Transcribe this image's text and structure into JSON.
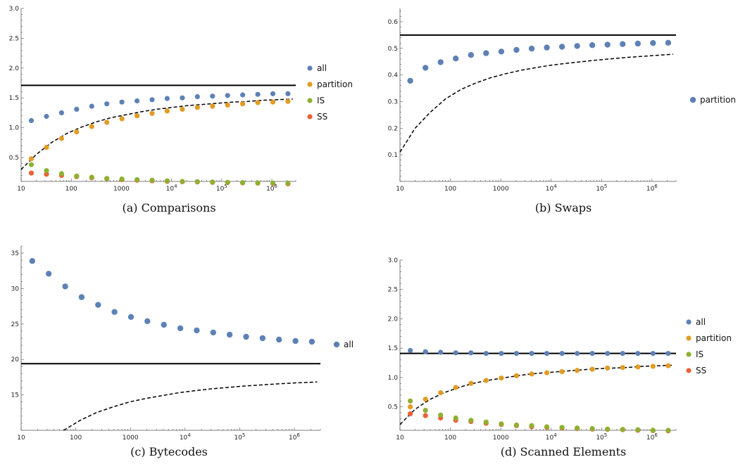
{
  "chart_data": [
    {
      "id": "a",
      "type": "scatter",
      "caption": "(a) Comparisons",
      "x_scale": "log",
      "xlim": [
        10,
        3000000
      ],
      "ylim": [
        0.1,
        3.0
      ],
      "y_ticks": [
        0.5,
        1.0,
        1.5,
        2.0,
        2.5,
        3.0
      ],
      "y_tick_labels": [
        "0.5",
        "1.0",
        "1.5",
        "2.0",
        "2.5",
        "3.0"
      ],
      "x_ticks": [
        10,
        100,
        1000,
        10000,
        100000,
        1000000
      ],
      "x_tick_labels": [
        "10",
        "100",
        "1000",
        "10^4",
        "10^5",
        "10^6"
      ],
      "x": [
        16,
        32,
        64,
        128,
        256,
        512,
        1024,
        2048,
        4096,
        8192,
        16384,
        32768,
        65536,
        131072,
        262144,
        524288,
        1048576,
        2097152
      ],
      "series": [
        {
          "name": "all",
          "color": "#5e81b5",
          "values": [
            1.12,
            1.19,
            1.25,
            1.31,
            1.36,
            1.4,
            1.43,
            1.45,
            1.47,
            1.49,
            1.5,
            1.52,
            1.53,
            1.54,
            1.55,
            1.56,
            1.57,
            1.57
          ]
        },
        {
          "name": "partition",
          "color": "#e19c24",
          "values": [
            0.48,
            0.67,
            0.82,
            0.93,
            1.02,
            1.09,
            1.15,
            1.2,
            1.24,
            1.28,
            1.31,
            1.34,
            1.36,
            1.38,
            1.4,
            1.42,
            1.43,
            1.44
          ]
        },
        {
          "name": "IS",
          "color": "#8fb032",
          "values": [
            0.38,
            0.28,
            0.23,
            0.19,
            0.17,
            0.15,
            0.14,
            0.13,
            0.12,
            0.11,
            0.1,
            0.095,
            0.09,
            0.085,
            0.08,
            0.075,
            0.07,
            0.07
          ]
        },
        {
          "name": "SS",
          "color": "#eb6235",
          "values": [
            0.24,
            0.22,
            0.2,
            0.18,
            0.16,
            0.145,
            0.13,
            0.12,
            0.11,
            0.1,
            0.095,
            0.09,
            0.085,
            0.08,
            0.075,
            0.07,
            0.065,
            0.06
          ]
        }
      ],
      "hline": 1.71,
      "dashed_curve": {
        "x": [
          10,
          20,
          40,
          80,
          160,
          320,
          640,
          1280,
          2560,
          5120,
          10240,
          20480,
          40960,
          81920,
          163840,
          327680,
          655360,
          1310720,
          2621440
        ],
        "y": [
          0.3,
          0.55,
          0.75,
          0.9,
          1.01,
          1.1,
          1.17,
          1.22,
          1.27,
          1.31,
          1.34,
          1.37,
          1.39,
          1.41,
          1.43,
          1.44,
          1.46,
          1.47,
          1.48
        ]
      },
      "legend": [
        "all",
        "partition",
        "IS",
        "SS"
      ],
      "legend_placement": "right"
    },
    {
      "id": "b",
      "type": "scatter",
      "caption": "(b) Swaps",
      "x_scale": "log",
      "xlim": [
        10,
        3000000
      ],
      "ylim": [
        0.0,
        0.65
      ],
      "y_ticks": [
        0.1,
        0.2,
        0.3,
        0.4,
        0.5,
        0.6
      ],
      "y_tick_labels": [
        "0.1",
        "0.2",
        "0.3",
        "0.4",
        "0.5",
        "0.6"
      ],
      "x_ticks": [
        10,
        100,
        1000,
        10000,
        100000,
        1000000
      ],
      "x_tick_labels": [
        "10",
        "100",
        "1000",
        "10^4",
        "10^5",
        "10^6"
      ],
      "x": [
        16,
        32,
        64,
        128,
        256,
        512,
        1024,
        2048,
        4096,
        8192,
        16384,
        32768,
        65536,
        131072,
        262144,
        524288,
        1048576,
        2097152
      ],
      "series": [
        {
          "name": "partition",
          "color": "#5e81b5",
          "values": [
            0.378,
            0.427,
            0.448,
            0.462,
            0.475,
            0.482,
            0.488,
            0.494,
            0.499,
            0.503,
            0.506,
            0.509,
            0.512,
            0.514,
            0.516,
            0.518,
            0.52,
            0.521
          ]
        }
      ],
      "hline": 0.55,
      "dashed_curve": {
        "x": [
          10,
          20,
          40,
          80,
          160,
          320,
          640,
          1280,
          2560,
          5120,
          10240,
          20480,
          40960,
          81920,
          163840,
          327680,
          655360,
          1310720,
          2621440
        ],
        "y": [
          0.11,
          0.2,
          0.26,
          0.31,
          0.345,
          0.37,
          0.39,
          0.405,
          0.418,
          0.428,
          0.437,
          0.444,
          0.45,
          0.456,
          0.461,
          0.466,
          0.47,
          0.474,
          0.478
        ]
      },
      "legend": [
        "partition"
      ],
      "legend_placement": "right"
    },
    {
      "id": "c",
      "type": "scatter",
      "caption": "(c) Bytecodes",
      "x_scale": "log",
      "xlim": [
        10,
        3000000
      ],
      "ylim": [
        10,
        36
      ],
      "y_ticks": [
        15,
        20,
        25,
        30,
        35
      ],
      "y_tick_labels": [
        "15",
        "20",
        "25",
        "30",
        "35"
      ],
      "x_ticks": [
        10,
        100,
        1000,
        10000,
        100000,
        1000000
      ],
      "x_tick_labels": [
        "10",
        "100",
        "1000",
        "10^4",
        "10^5",
        "10^6"
      ],
      "x": [
        16,
        32,
        64,
        128,
        256,
        512,
        1024,
        2048,
        4096,
        8192,
        16384,
        32768,
        65536,
        131072,
        262144,
        524288,
        1048576,
        2097152
      ],
      "series": [
        {
          "name": "all",
          "color": "#5e81b5",
          "values": [
            33.9,
            32.1,
            30.3,
            28.8,
            27.7,
            26.7,
            26.0,
            25.4,
            24.9,
            24.4,
            24.1,
            23.8,
            23.5,
            23.2,
            23.0,
            22.8,
            22.6,
            22.5
          ]
        }
      ],
      "hline": 19.4,
      "dashed_curve": {
        "x": [
          60,
          120,
          240,
          480,
          960,
          1920,
          3840,
          7680,
          15360,
          30720,
          61440,
          122880,
          245760,
          491520,
          983040,
          1966080,
          2621440
        ],
        "y": [
          10.0,
          11.4,
          12.5,
          13.3,
          14.0,
          14.5,
          14.9,
          15.3,
          15.6,
          15.85,
          16.05,
          16.25,
          16.4,
          16.55,
          16.68,
          16.78,
          16.82
        ]
      },
      "legend": [
        "all"
      ],
      "legend_placement": "right"
    },
    {
      "id": "d",
      "type": "scatter",
      "caption": "(d) Scanned Elements",
      "x_scale": "log",
      "xlim": [
        10,
        3000000
      ],
      "ylim": [
        0.1,
        3.0
      ],
      "y_ticks": [
        0.5,
        1.0,
        1.5,
        2.0,
        2.5,
        3.0
      ],
      "y_tick_labels": [
        "0.5",
        "1.0",
        "1.5",
        "2.0",
        "2.5",
        "3.0"
      ],
      "x_ticks": [
        10,
        100,
        1000,
        10000,
        100000,
        1000000
      ],
      "x_tick_labels": [
        "10",
        "100",
        "1000",
        "10^4",
        "10^5",
        "10^6"
      ],
      "x": [
        16,
        32,
        64,
        128,
        256,
        512,
        1024,
        2048,
        4096,
        8192,
        16384,
        32768,
        65536,
        131072,
        262144,
        524288,
        1048576,
        2097152
      ],
      "series": [
        {
          "name": "all",
          "color": "#5e81b5",
          "values": [
            1.46,
            1.44,
            1.43,
            1.42,
            1.42,
            1.41,
            1.41,
            1.41,
            1.41,
            1.41,
            1.41,
            1.41,
            1.41,
            1.41,
            1.41,
            1.41,
            1.41,
            1.41
          ]
        },
        {
          "name": "partition",
          "color": "#e19c24",
          "values": [
            0.5,
            0.63,
            0.74,
            0.83,
            0.9,
            0.95,
            0.99,
            1.03,
            1.06,
            1.08,
            1.1,
            1.12,
            1.14,
            1.16,
            1.17,
            1.18,
            1.19,
            1.2
          ]
        },
        {
          "name": "IS",
          "color": "#8fb032",
          "values": [
            0.6,
            0.44,
            0.36,
            0.31,
            0.27,
            0.24,
            0.21,
            0.19,
            0.18,
            0.16,
            0.15,
            0.14,
            0.13,
            0.12,
            0.115,
            0.11,
            0.1,
            0.1
          ]
        },
        {
          "name": "SS",
          "color": "#eb6235",
          "values": [
            0.38,
            0.35,
            0.31,
            0.27,
            0.25,
            0.22,
            0.2,
            0.18,
            0.16,
            0.15,
            0.14,
            0.13,
            0.12,
            0.115,
            0.11,
            0.1,
            0.095,
            0.09
          ]
        }
      ],
      "hline": 1.41,
      "dashed_curve": {
        "x": [
          10,
          20,
          40,
          80,
          160,
          320,
          640,
          1280,
          2560,
          5120,
          10240,
          20480,
          40960,
          81920,
          163840,
          327680,
          655360,
          1310720,
          2621440
        ],
        "y": [
          0.2,
          0.46,
          0.63,
          0.75,
          0.84,
          0.91,
          0.96,
          1.0,
          1.04,
          1.07,
          1.09,
          1.11,
          1.13,
          1.15,
          1.16,
          1.17,
          1.19,
          1.2,
          1.21
        ]
      },
      "legend": [
        "all",
        "partition",
        "IS",
        "SS"
      ],
      "legend_placement": "right"
    }
  ]
}
